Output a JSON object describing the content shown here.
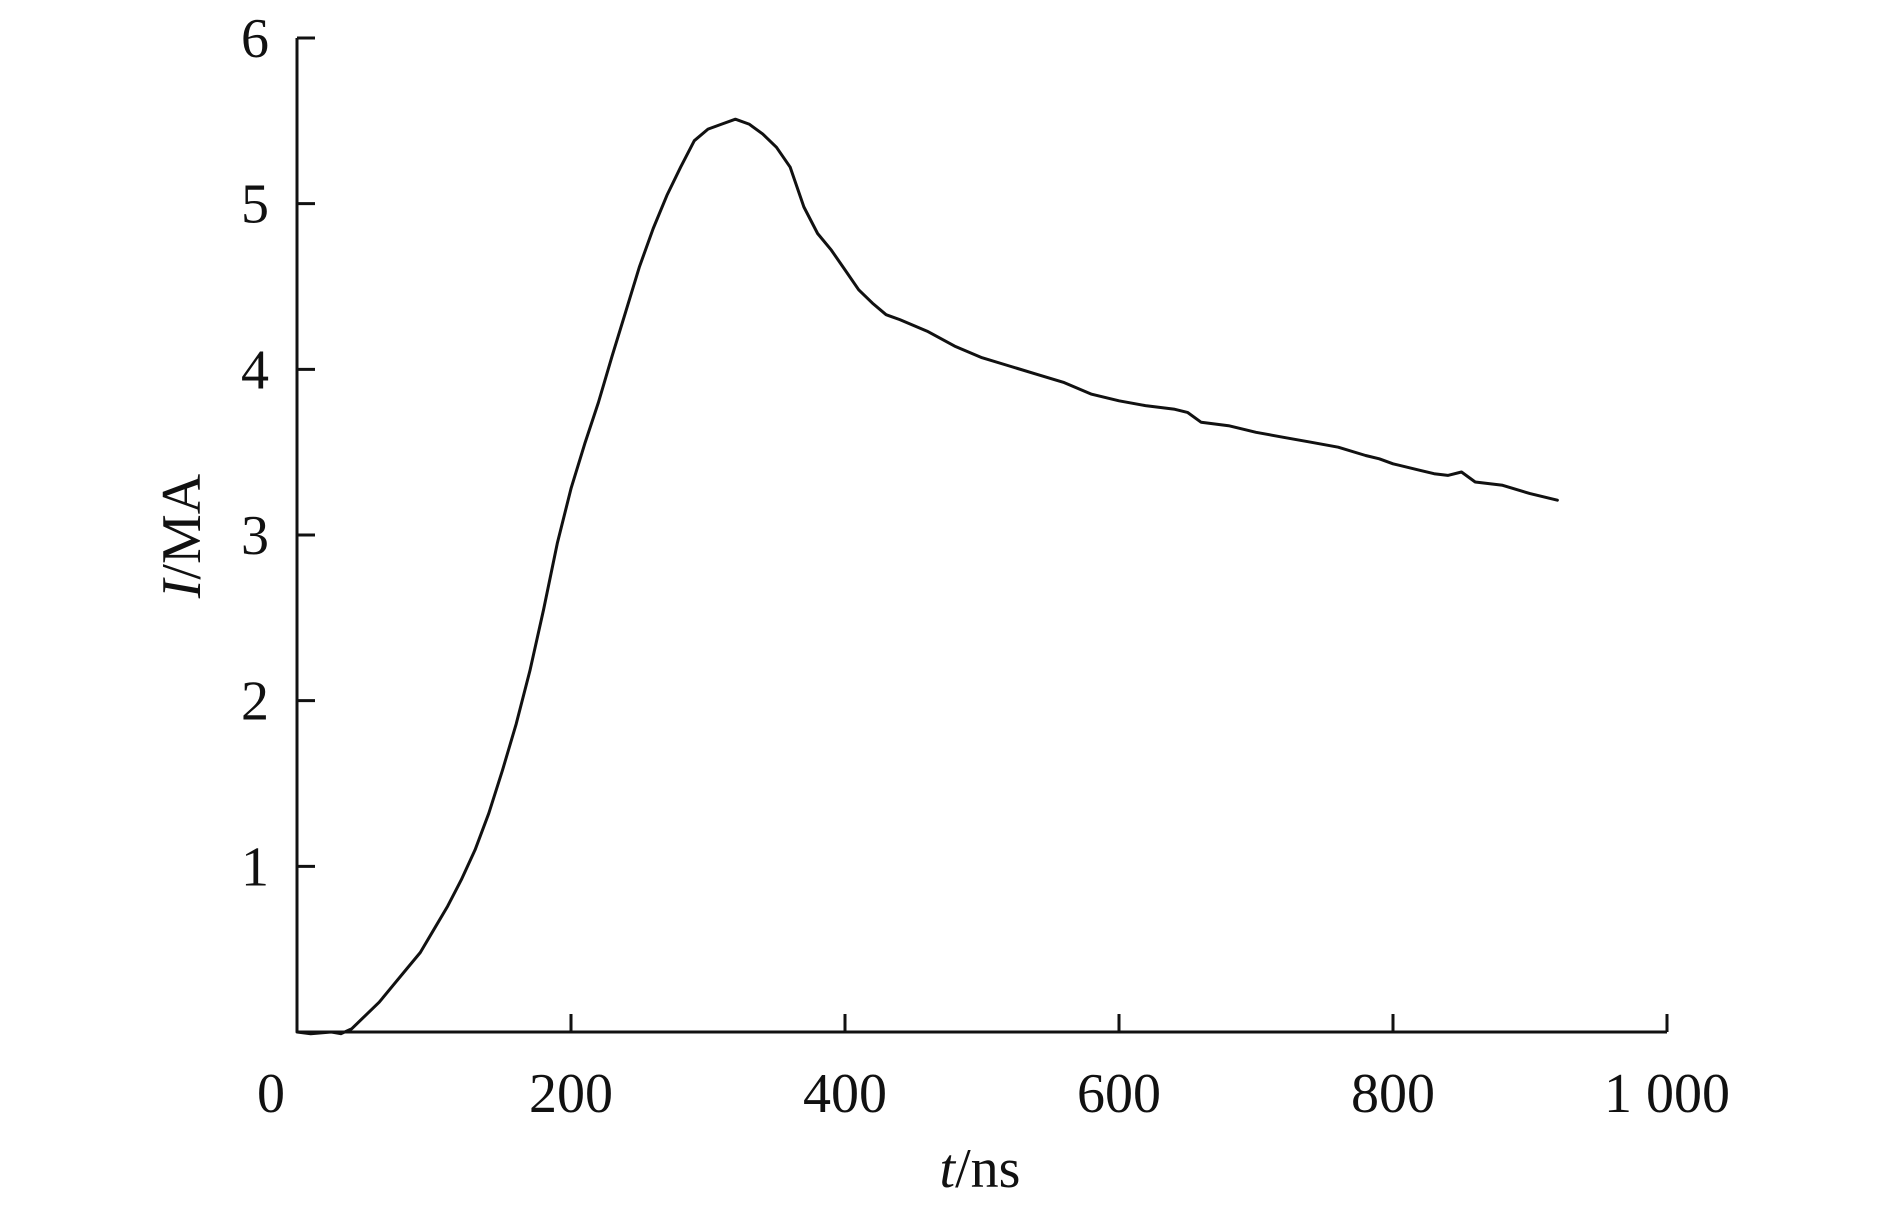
{
  "chart_data": {
    "type": "line",
    "title": "",
    "xlabel": {
      "var": "t",
      "unit": "/ns"
    },
    "ylabel": {
      "var": "I",
      "unit": "/MA"
    },
    "xlim": [
      0,
      1000
    ],
    "ylim": [
      0,
      6
    ],
    "grid": false,
    "x_ticks": [
      {
        "value": 0,
        "label": "0"
      },
      {
        "value": 200,
        "label": "200"
      },
      {
        "value": 400,
        "label": "400"
      },
      {
        "value": 600,
        "label": "600"
      },
      {
        "value": 800,
        "label": "800"
      },
      {
        "value": 1000,
        "label": "1 000"
      }
    ],
    "y_ticks": [
      {
        "value": 1,
        "label": "1"
      },
      {
        "value": 2,
        "label": "2"
      },
      {
        "value": 3,
        "label": "3"
      },
      {
        "value": 4,
        "label": "4"
      },
      {
        "value": 5,
        "label": "5"
      },
      {
        "value": 6,
        "label": "6"
      }
    ],
    "series": [
      {
        "color": "#111111",
        "points": [
          [
            0,
            0.0
          ],
          [
            10,
            -0.01
          ],
          [
            25,
            0.0
          ],
          [
            32,
            -0.01
          ],
          [
            40,
            0.02
          ],
          [
            50,
            0.1
          ],
          [
            60,
            0.18
          ],
          [
            70,
            0.28
          ],
          [
            80,
            0.38
          ],
          [
            90,
            0.48
          ],
          [
            100,
            0.62
          ],
          [
            110,
            0.76
          ],
          [
            120,
            0.92
          ],
          [
            130,
            1.1
          ],
          [
            140,
            1.32
          ],
          [
            150,
            1.58
          ],
          [
            160,
            1.86
          ],
          [
            170,
            2.18
          ],
          [
            180,
            2.55
          ],
          [
            190,
            2.95
          ],
          [
            200,
            3.28
          ],
          [
            210,
            3.55
          ],
          [
            220,
            3.8
          ],
          [
            230,
            4.08
          ],
          [
            240,
            4.35
          ],
          [
            250,
            4.62
          ],
          [
            260,
            4.85
          ],
          [
            270,
            5.05
          ],
          [
            280,
            5.22
          ],
          [
            290,
            5.38
          ],
          [
            300,
            5.45
          ],
          [
            310,
            5.48
          ],
          [
            320,
            5.51
          ],
          [
            330,
            5.48
          ],
          [
            340,
            5.42
          ],
          [
            350,
            5.34
          ],
          [
            360,
            5.22
          ],
          [
            370,
            4.98
          ],
          [
            380,
            4.82
          ],
          [
            390,
            4.72
          ],
          [
            400,
            4.6
          ],
          [
            410,
            4.48
          ],
          [
            420,
            4.4
          ],
          [
            430,
            4.33
          ],
          [
            440,
            4.3
          ],
          [
            460,
            4.23
          ],
          [
            480,
            4.14
          ],
          [
            500,
            4.07
          ],
          [
            520,
            4.02
          ],
          [
            540,
            3.97
          ],
          [
            560,
            3.92
          ],
          [
            580,
            3.85
          ],
          [
            600,
            3.81
          ],
          [
            620,
            3.78
          ],
          [
            640,
            3.76
          ],
          [
            650,
            3.74
          ],
          [
            660,
            3.68
          ],
          [
            680,
            3.66
          ],
          [
            700,
            3.62
          ],
          [
            720,
            3.59
          ],
          [
            740,
            3.56
          ],
          [
            760,
            3.53
          ],
          [
            780,
            3.48
          ],
          [
            790,
            3.46
          ],
          [
            800,
            3.43
          ],
          [
            820,
            3.39
          ],
          [
            830,
            3.37
          ],
          [
            840,
            3.36
          ],
          [
            850,
            3.38
          ],
          [
            860,
            3.32
          ],
          [
            880,
            3.3
          ],
          [
            900,
            3.25
          ],
          [
            920,
            3.21
          ]
        ]
      }
    ]
  }
}
